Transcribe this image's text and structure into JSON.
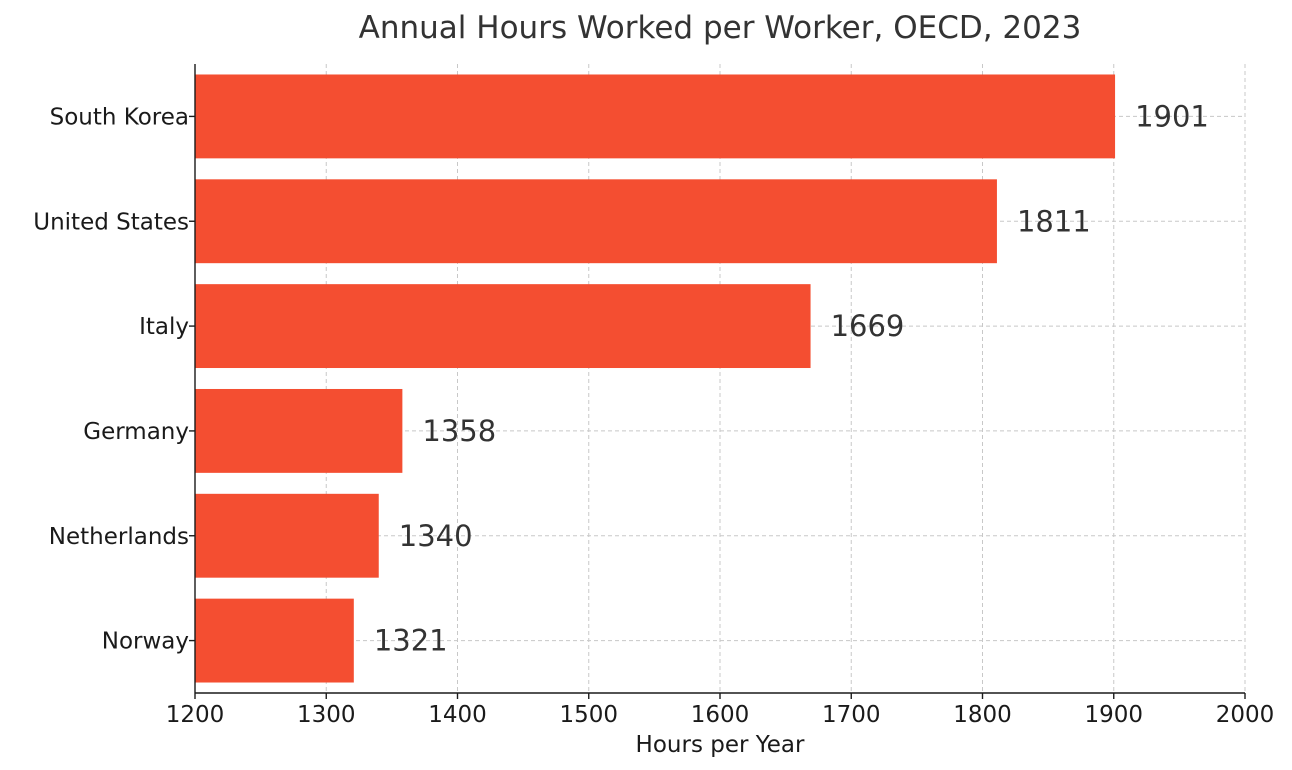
{
  "chart_data": {
    "type": "bar",
    "orientation": "horizontal",
    "title": "Annual Hours Worked per Worker, OECD, 2023",
    "xlabel": "Hours per Year",
    "ylabel": "",
    "xlim": [
      1200,
      2000
    ],
    "xticks": [
      1200,
      1300,
      1400,
      1500,
      1600,
      1700,
      1800,
      1900,
      2000
    ],
    "categories": [
      "South Korea",
      "United States",
      "Italy",
      "Germany",
      "Netherlands",
      "Norway"
    ],
    "values": [
      1901,
      1811,
      1669,
      1358,
      1340,
      1321
    ],
    "data_labels": [
      "1901",
      "1811",
      "1669",
      "1358",
      "1340",
      "1321"
    ],
    "bar_color": "#f44e31",
    "grid": true,
    "legend": "none"
  }
}
